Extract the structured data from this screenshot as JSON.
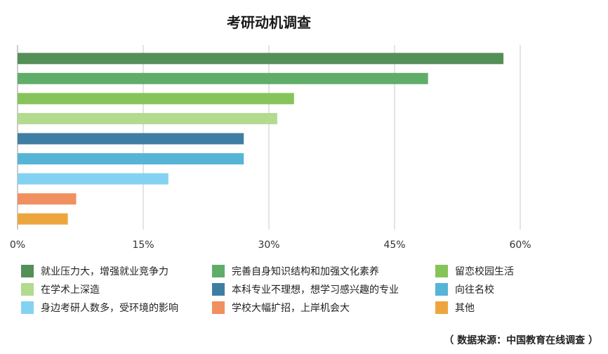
{
  "chart_data": {
    "type": "bar",
    "orientation": "horizontal",
    "title": "考研动机调查",
    "categories": [
      "就业压力大，增强就业竞争力",
      "完善自身知识结构和加强文化素养",
      "留恋校园生活",
      "在学术上深造",
      "本科专业不理想，想学习感兴趣的专业",
      "向往名校",
      "身边考研人数多，受环境的影响",
      "学校大幅扩招，上岸机会大",
      "其他"
    ],
    "values": [
      58,
      49,
      33,
      31,
      27,
      27,
      18,
      7,
      6
    ],
    "colors": [
      "#548f57",
      "#5fad69",
      "#86c45a",
      "#b3da8f",
      "#3f7ea3",
      "#56b4d6",
      "#84d2f2",
      "#f09060",
      "#eda63e"
    ],
    "xlim": [
      0,
      60
    ],
    "xticks": [
      "0%",
      "15%",
      "30%",
      "45%",
      "60%"
    ],
    "grid": true,
    "legend_position": "bottom"
  },
  "source_note": "（ 数据来源：中国教育在线调查 ）"
}
